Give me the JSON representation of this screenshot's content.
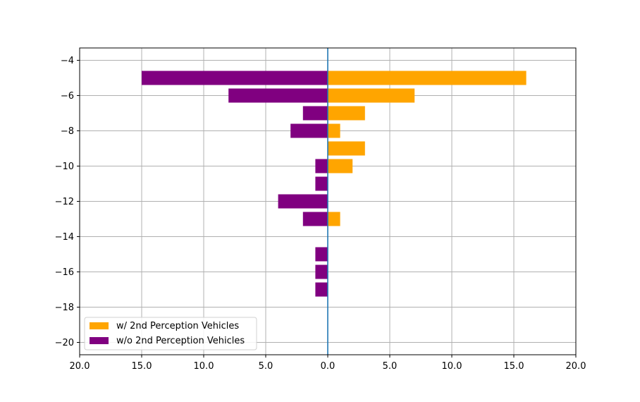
{
  "chart_data": {
    "type": "bar",
    "orientation": "horizontal-diverging",
    "title": "",
    "xlabel": "",
    "ylabel": "",
    "grid": true,
    "legend_position": "lower-left",
    "xlim": [
      -20,
      20
    ],
    "ylim": [
      -20.7,
      -3.3
    ],
    "x_ticks": [
      -20,
      -15,
      -10,
      -5,
      0,
      5,
      10,
      15,
      20
    ],
    "x_tick_labels": [
      "20.0",
      "15.0",
      "10.0",
      "5.0",
      "0.0",
      "5.0",
      "10.0",
      "15.0",
      "20.0"
    ],
    "y_ticks": [
      -4,
      -6,
      -8,
      -10,
      -12,
      -14,
      -16,
      -18,
      -20
    ],
    "y_tick_labels": [
      "−4",
      "−6",
      "−8",
      "−10",
      "−12",
      "−14",
      "−16",
      "−18",
      "−20"
    ],
    "categories": [
      -5,
      -6,
      -7,
      -8,
      -9,
      -10,
      -11,
      -12,
      -13,
      -14,
      -15,
      -16,
      -17
    ],
    "series": [
      {
        "name": "w/ 2nd Perception Vehicles",
        "color": "#ffa500",
        "direction": "right",
        "values": [
          16,
          7,
          3,
          1,
          3,
          2,
          0,
          0,
          1,
          0,
          0,
          0,
          0
        ]
      },
      {
        "name": "w/o 2nd Perception Vehicles",
        "color": "#800080",
        "direction": "left",
        "values": [
          15,
          8,
          2,
          3,
          0,
          1,
          1,
          4,
          2,
          0,
          1,
          1,
          1
        ]
      }
    ],
    "zero_line_color": "#1f77b4"
  }
}
